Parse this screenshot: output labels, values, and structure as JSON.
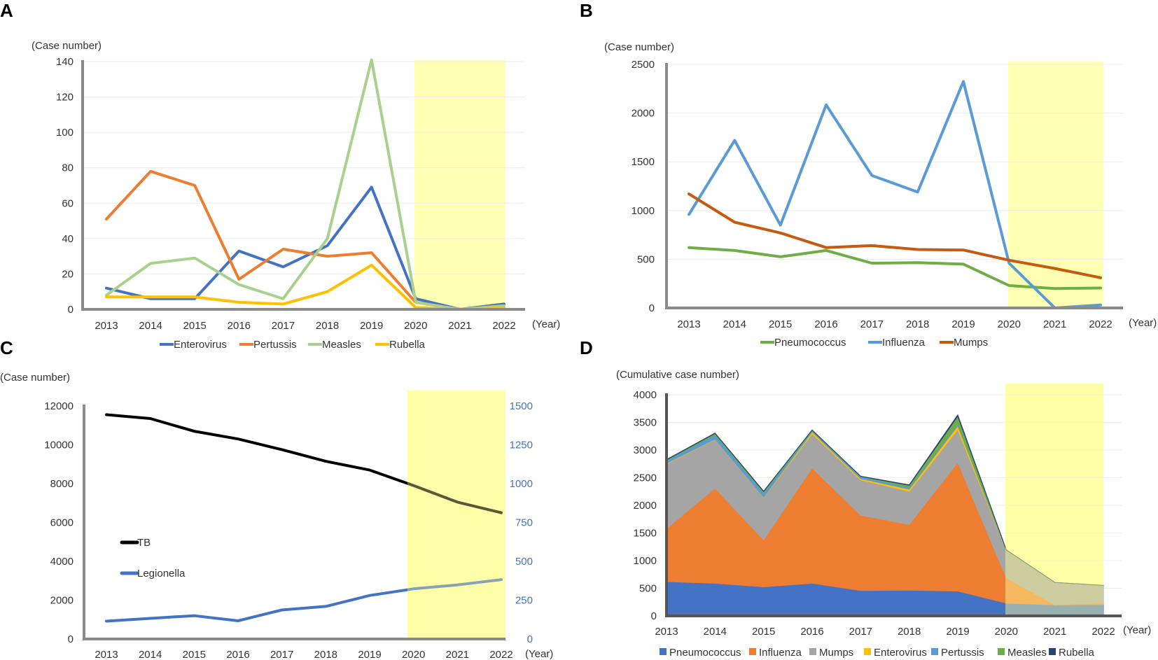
{
  "panels": {
    "a": "A",
    "b": "B",
    "c": "C",
    "d": "D"
  },
  "chart_data": [
    {
      "id": "A",
      "type": "line",
      "ylabel": "(Case number)",
      "xlabel": "(Year)",
      "categories": [
        "2013",
        "2014",
        "2015",
        "2016",
        "2017",
        "2018",
        "2019",
        "2020",
        "2021",
        "2022"
      ],
      "ylim": [
        0,
        140
      ],
      "yticks": [
        0,
        20,
        40,
        60,
        80,
        100,
        120,
        140
      ],
      "highlight": [
        "2020",
        "2022"
      ],
      "legend_position": "bottom",
      "series": [
        {
          "name": "Enterovirus",
          "color": "#4472c4",
          "values": [
            12,
            6,
            6,
            33,
            24,
            36,
            69,
            6,
            0,
            3
          ]
        },
        {
          "name": "Pertussis",
          "color": "#ed7d31",
          "values": [
            51,
            78,
            70,
            17,
            34,
            30,
            32,
            4,
            0,
            2
          ]
        },
        {
          "name": "Measles",
          "color": "#a9d18e",
          "values": [
            8,
            26,
            29,
            14,
            6,
            40,
            141,
            4,
            0,
            2
          ]
        },
        {
          "name": "Rubella",
          "color": "#ffc000",
          "values": [
            7,
            7,
            7,
            4,
            3,
            10,
            25,
            1,
            0,
            1
          ]
        }
      ]
    },
    {
      "id": "B",
      "type": "line",
      "ylabel": "(Case number)",
      "xlabel": "(Year)",
      "categories": [
        "2013",
        "2014",
        "2015",
        "2016",
        "2017",
        "2018",
        "2019",
        "2020",
        "2021",
        "2022"
      ],
      "ylim": [
        0,
        2500
      ],
      "yticks": [
        0,
        500,
        1000,
        1500,
        2000,
        2500
      ],
      "highlight": [
        "2020",
        "2022"
      ],
      "legend_position": "bottom",
      "series": [
        {
          "name": "Pneumococcus",
          "color": "#70ad47",
          "values": [
            620,
            590,
            525,
            590,
            460,
            465,
            450,
            230,
            200,
            205
          ]
        },
        {
          "name": "Influenza",
          "color": "#5b9bd5",
          "values": [
            960,
            1720,
            850,
            2085,
            1360,
            1190,
            2325,
            460,
            0,
            30
          ]
        },
        {
          "name": "Mumps",
          "color": "#c55a11",
          "values": [
            1170,
            880,
            770,
            620,
            640,
            600,
            595,
            490,
            405,
            310
          ]
        }
      ]
    },
    {
      "id": "C",
      "type": "line",
      "ylabel": "(Case number)",
      "xlabel": "(Year)",
      "categories": [
        "2013",
        "2014",
        "2015",
        "2016",
        "2017",
        "2018",
        "2019",
        "2020",
        "2021",
        "2022"
      ],
      "ylim": [
        0,
        12000
      ],
      "yticks": [
        0,
        2000,
        4000,
        6000,
        8000,
        10000,
        12000
      ],
      "y2lim": [
        0,
        1500
      ],
      "y2ticks": [
        0,
        250,
        500,
        750,
        1000,
        1250,
        1500
      ],
      "highlight": [
        "2020",
        "2022"
      ],
      "legend_position": "middle-left",
      "series": [
        {
          "name": "TB",
          "axis": "left",
          "color": "#000000",
          "values": [
            11550,
            11350,
            10700,
            10300,
            9750,
            9150,
            8700,
            7900,
            7050,
            6500
          ]
        },
        {
          "name": "Legionella",
          "axis": "right",
          "color": "#4472c4",
          "values": [
            115,
            133,
            150,
            117,
            187,
            210,
            280,
            323,
            348,
            382
          ]
        }
      ]
    },
    {
      "id": "D",
      "type": "area",
      "stacked": true,
      "ylabel": "(Cumulative case number)",
      "xlabel": "(Year)",
      "categories": [
        "2013",
        "2014",
        "2015",
        "2016",
        "2017",
        "2018",
        "2019",
        "2020",
        "2021",
        "2022"
      ],
      "ylim": [
        0,
        4000
      ],
      "yticks": [
        0,
        500,
        1000,
        1500,
        2000,
        2500,
        3000,
        3500,
        4000
      ],
      "highlight": [
        "2020",
        "2022"
      ],
      "legend_position": "bottom",
      "series": [
        {
          "name": "Pneumococcus",
          "color": "#4472c4",
          "values": [
            620,
            590,
            525,
            590,
            460,
            465,
            450,
            230,
            200,
            205
          ]
        },
        {
          "name": "Influenza",
          "color": "#ed7d31",
          "values": [
            960,
            1720,
            850,
            2085,
            1360,
            1190,
            2325,
            460,
            0,
            30
          ]
        },
        {
          "name": "Mumps",
          "color": "#a5a5a5",
          "values": [
            1170,
            880,
            770,
            620,
            640,
            600,
            595,
            490,
            405,
            310
          ]
        },
        {
          "name": "Enterovirus",
          "color": "#ffc000",
          "values": [
            12,
            6,
            6,
            33,
            24,
            36,
            69,
            6,
            0,
            3
          ]
        },
        {
          "name": "Pertussis",
          "color": "#5b9bd5",
          "values": [
            51,
            78,
            70,
            17,
            34,
            30,
            32,
            4,
            0,
            2
          ]
        },
        {
          "name": "Measles",
          "color": "#70ad47",
          "values": [
            8,
            26,
            29,
            14,
            6,
            40,
            141,
            4,
            0,
            2
          ]
        },
        {
          "name": "Rubella",
          "color": "#264478",
          "values": [
            7,
            7,
            7,
            4,
            3,
            10,
            25,
            1,
            0,
            1
          ]
        }
      ]
    }
  ]
}
